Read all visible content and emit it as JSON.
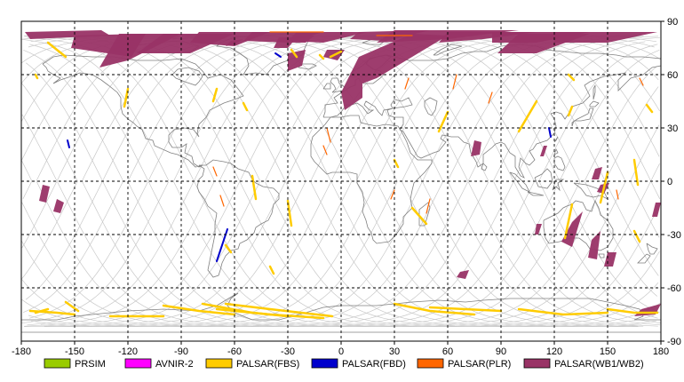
{
  "map": {
    "x_ticks": [
      {
        "value": -180,
        "label": "-180"
      },
      {
        "value": -150,
        "label": "-150"
      },
      {
        "value": -120,
        "label": "-120"
      },
      {
        "value": -90,
        "label": "-90"
      },
      {
        "value": -60,
        "label": "-60"
      },
      {
        "value": -30,
        "label": "-30"
      },
      {
        "value": 0,
        "label": "0"
      },
      {
        "value": 30,
        "label": "30"
      },
      {
        "value": 60,
        "label": "60"
      },
      {
        "value": 90,
        "label": "90"
      },
      {
        "value": 120,
        "label": "120"
      },
      {
        "value": 150,
        "label": "150"
      },
      {
        "value": 180,
        "label": "180"
      }
    ],
    "y_ticks": [
      {
        "value": 90,
        "label": "90"
      },
      {
        "value": 60,
        "label": "60"
      },
      {
        "value": 30,
        "label": "30"
      },
      {
        "value": 0,
        "label": "0"
      },
      {
        "value": -30,
        "label": "-30"
      },
      {
        "value": -60,
        "label": "-60"
      },
      {
        "value": -90,
        "label": "-90"
      }
    ],
    "lon_range": [
      -180,
      180
    ],
    "lat_range": [
      -90,
      90
    ],
    "grid": true,
    "colors": {
      "land": "#808080",
      "orbit_track": "#c8c8c8",
      "grid": "#000000"
    }
  },
  "legend": {
    "position": "bottom",
    "items": [
      {
        "key": "prism",
        "label": "PRSIM",
        "color": "#99cc00"
      },
      {
        "key": "avnir2",
        "label": "AVNIR-2",
        "color": "#ff00ff"
      },
      {
        "key": "fbs",
        "label": "PALSAR(FBS)",
        "color": "#ffcc00"
      },
      {
        "key": "fbd",
        "label": "PALSAR(FBD)",
        "color": "#0000cc"
      },
      {
        "key": "plr",
        "label": "PALSAR(PLR)",
        "color": "#ff6600"
      },
      {
        "key": "wb",
        "label": "PALSAR(WB1/WB2)",
        "color": "#993366"
      }
    ]
  }
}
